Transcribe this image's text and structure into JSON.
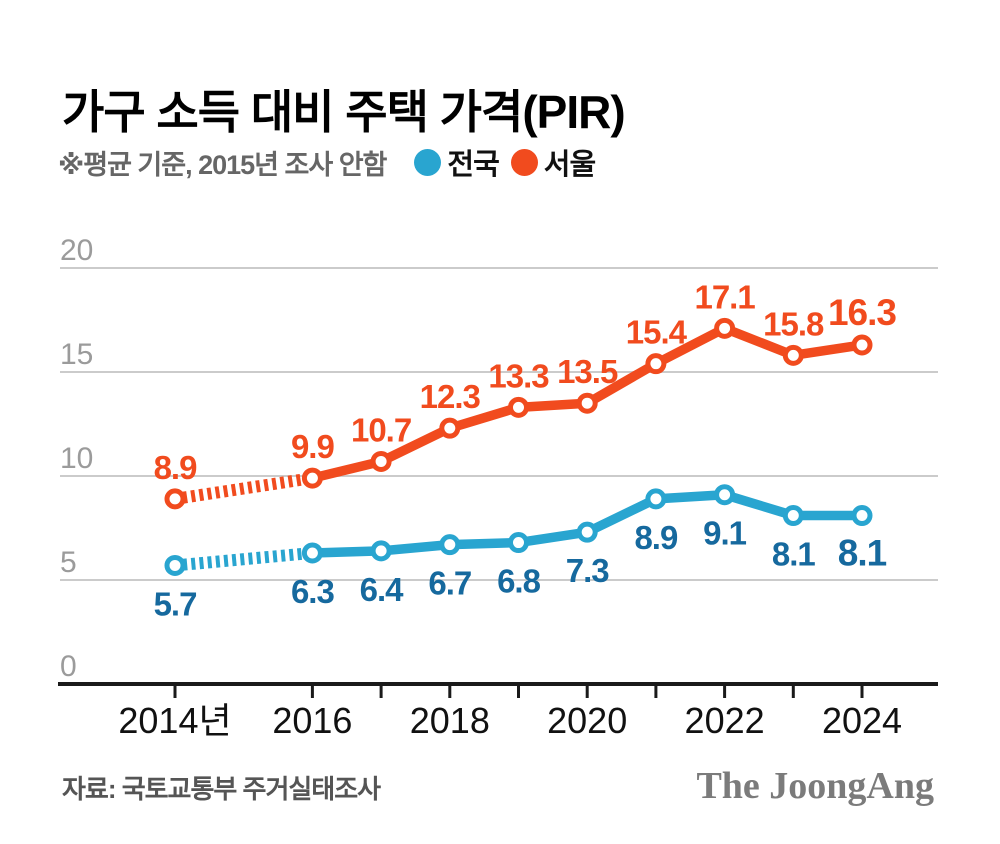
{
  "chart_data": {
    "type": "line",
    "title": "가구 소득 대비 주택 가격(PIR)",
    "note": "※평균 기준, 2015년 조사 안함",
    "source": "자료: 국토교통부 주거실태조사",
    "logo": "The JoongAng",
    "x": [
      2014,
      2016,
      2017,
      2018,
      2019,
      2020,
      2021,
      2022,
      2023,
      2024
    ],
    "x_ticks": [
      {
        "year": 2014,
        "label": "2014년"
      },
      {
        "year": 2016,
        "label": "2016"
      },
      {
        "year": 2018,
        "label": "2018"
      },
      {
        "year": 2020,
        "label": "2020"
      },
      {
        "year": 2022,
        "label": "2022"
      },
      {
        "year": 2024,
        "label": "2024"
      }
    ],
    "yticks": [
      0,
      5,
      10,
      15,
      20
    ],
    "ylim": [
      0,
      20
    ],
    "grid": true,
    "legend_position": "top",
    "dashed_between": [
      2014,
      2016
    ],
    "series": [
      {
        "name": "서울",
        "color": "#f14b1e",
        "label_color": "#f14b1e",
        "label_position": "above",
        "values": [
          8.9,
          9.9,
          10.7,
          12.3,
          13.3,
          13.5,
          15.4,
          17.1,
          15.8,
          16.3
        ]
      },
      {
        "name": "전국",
        "color": "#29a5d0",
        "label_color": "#16699e",
        "label_position": "below",
        "values": [
          5.7,
          6.3,
          6.4,
          6.7,
          6.8,
          7.3,
          8.9,
          9.1,
          8.1,
          8.1
        ]
      }
    ],
    "legend": [
      {
        "name": "전국",
        "color": "#29a5d0"
      },
      {
        "name": "서울",
        "color": "#f14b1e"
      }
    ],
    "colors": {
      "grid": "#cbcbcb",
      "axis": "#1a1a1a",
      "y_tick_label": "#9b9b9b",
      "x_tick_label": "#111111",
      "title": "#000000",
      "note": "#666666",
      "source": "#555555",
      "logo": "#7b7b7b"
    }
  }
}
